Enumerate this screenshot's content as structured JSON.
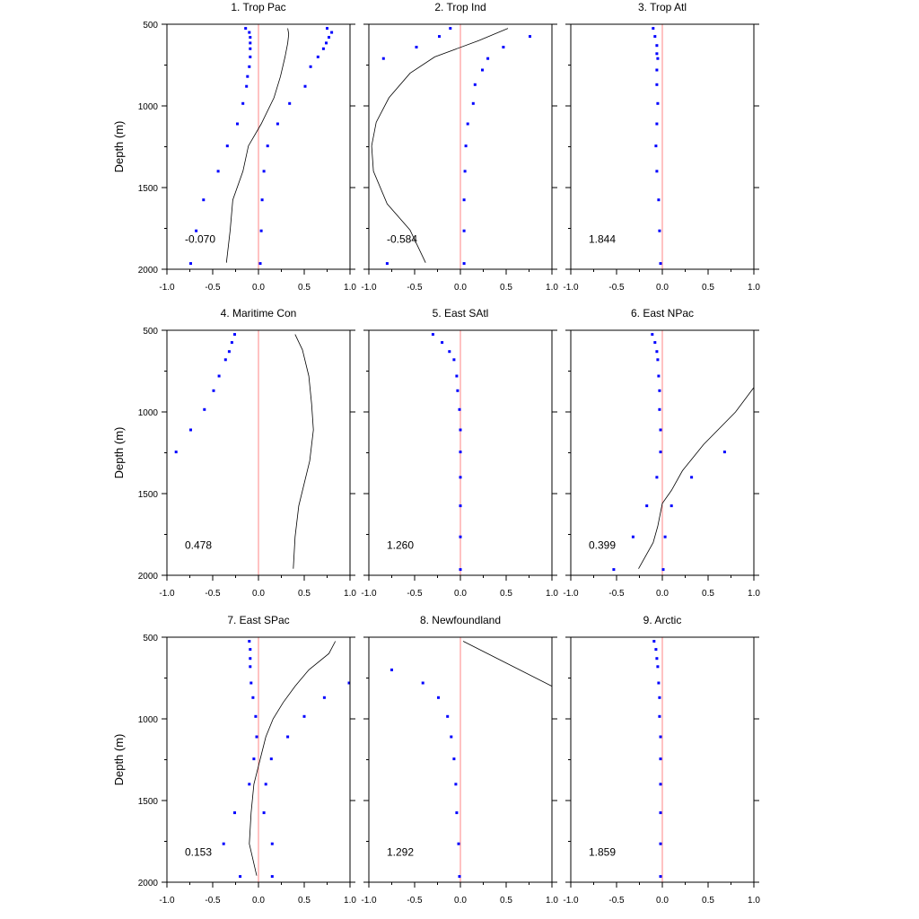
{
  "chart_data": {
    "type": "scatter",
    "ylabel": "Depth (m)",
    "xlim": [
      -1.0,
      1.0
    ],
    "ylim": [
      500,
      2000
    ],
    "y_reversed": true,
    "x_ticks": [
      "-1.0",
      "-0.5",
      "0.0",
      "0.5",
      "1.0"
    ],
    "y_ticks": [
      "500",
      "1000",
      "1500",
      "2000"
    ],
    "colors": {
      "points": "#0000ff",
      "zero_line": "#ff9999",
      "curve": "#000000"
    },
    "panels": [
      {
        "title": "1. Trop Pac",
        "value_label": "-0.070",
        "points": [
          [
            -0.14,
            525
          ],
          [
            -0.1,
            550
          ],
          [
            -0.09,
            580
          ],
          [
            -0.09,
            615
          ],
          [
            -0.09,
            650
          ],
          [
            -0.09,
            700
          ],
          [
            -0.1,
            760
          ],
          [
            -0.12,
            820
          ],
          [
            -0.13,
            880
          ],
          [
            -0.17,
            985
          ],
          [
            -0.23,
            1110
          ],
          [
            -0.34,
            1245
          ],
          [
            -0.44,
            1400
          ],
          [
            -0.6,
            1575
          ],
          [
            -0.68,
            1765
          ],
          [
            -0.74,
            1965
          ],
          [
            0.75,
            525
          ],
          [
            0.8,
            550
          ],
          [
            0.77,
            580
          ],
          [
            0.74,
            615
          ],
          [
            0.71,
            650
          ],
          [
            0.65,
            700
          ],
          [
            0.57,
            760
          ],
          [
            0.51,
            880
          ],
          [
            0.34,
            985
          ],
          [
            0.21,
            1110
          ],
          [
            0.1,
            1245
          ],
          [
            0.06,
            1400
          ],
          [
            0.04,
            1575
          ],
          [
            0.03,
            1765
          ],
          [
            0.02,
            1965
          ]
        ],
        "curve": [
          [
            0.32,
            525
          ],
          [
            0.33,
            560
          ],
          [
            0.32,
            615
          ],
          [
            0.29,
            700
          ],
          [
            0.24,
            820
          ],
          [
            0.17,
            950
          ],
          [
            0.03,
            1110
          ],
          [
            -0.11,
            1245
          ],
          [
            -0.17,
            1400
          ],
          [
            -0.28,
            1575
          ],
          [
            -0.31,
            1765
          ],
          [
            -0.35,
            1960
          ]
        ]
      },
      {
        "title": "2. Trop Ind",
        "value_label": "-0.584",
        "points": [
          [
            -0.11,
            525
          ],
          [
            -0.23,
            575
          ],
          [
            -0.48,
            640
          ],
          [
            -0.84,
            710
          ],
          [
            -0.8,
            1965
          ],
          [
            0.76,
            575
          ],
          [
            0.47,
            640
          ],
          [
            0.3,
            710
          ],
          [
            0.24,
            780
          ],
          [
            0.16,
            870
          ],
          [
            0.14,
            985
          ],
          [
            0.08,
            1110
          ],
          [
            0.06,
            1245
          ],
          [
            0.05,
            1400
          ],
          [
            0.04,
            1575
          ],
          [
            0.04,
            1765
          ],
          [
            0.04,
            1965
          ]
        ],
        "curve": [
          [
            0.52,
            525
          ],
          [
            0.2,
            600
          ],
          [
            -0.28,
            700
          ],
          [
            -0.55,
            800
          ],
          [
            -0.78,
            950
          ],
          [
            -0.92,
            1100
          ],
          [
            -0.97,
            1245
          ],
          [
            -0.95,
            1400
          ],
          [
            -0.8,
            1600
          ],
          [
            -0.55,
            1760
          ],
          [
            -0.38,
            1960
          ]
        ]
      },
      {
        "title": "3. Trop Atl",
        "value_label": "1.844",
        "points": [
          [
            -0.1,
            525
          ],
          [
            -0.08,
            575
          ],
          [
            -0.06,
            630
          ],
          [
            -0.06,
            680
          ],
          [
            -0.05,
            710
          ],
          [
            -0.06,
            780
          ],
          [
            -0.06,
            870
          ],
          [
            -0.05,
            985
          ],
          [
            -0.06,
            1110
          ],
          [
            -0.07,
            1245
          ],
          [
            -0.06,
            1400
          ],
          [
            -0.04,
            1575
          ],
          [
            -0.03,
            1765
          ],
          [
            -0.02,
            1965
          ]
        ],
        "curve": []
      },
      {
        "title": "4. Maritime Con",
        "value_label": "0.478",
        "points": [
          [
            -0.26,
            525
          ],
          [
            -0.29,
            575
          ],
          [
            -0.32,
            630
          ],
          [
            -0.36,
            680
          ],
          [
            -0.43,
            780
          ],
          [
            -0.49,
            870
          ],
          [
            -0.59,
            985
          ],
          [
            -0.74,
            1110
          ],
          [
            -0.9,
            1245
          ]
        ],
        "curve": [
          [
            0.4,
            525
          ],
          [
            0.48,
            620
          ],
          [
            0.55,
            780
          ],
          [
            0.58,
            950
          ],
          [
            0.6,
            1110
          ],
          [
            0.56,
            1300
          ],
          [
            0.44,
            1575
          ],
          [
            0.4,
            1765
          ],
          [
            0.38,
            1960
          ]
        ]
      },
      {
        "title": "5. East SAtl",
        "value_label": "1.260",
        "points": [
          [
            -0.3,
            525
          ],
          [
            -0.2,
            575
          ],
          [
            -0.12,
            630
          ],
          [
            -0.07,
            680
          ],
          [
            -0.04,
            780
          ],
          [
            -0.03,
            870
          ],
          [
            -0.01,
            985
          ],
          [
            0.0,
            1110
          ],
          [
            0.0,
            1245
          ],
          [
            0.0,
            1400
          ],
          [
            0.0,
            1575
          ],
          [
            0.0,
            1765
          ],
          [
            0.0,
            1965
          ]
        ],
        "curve": []
      },
      {
        "title": "6. East NPac",
        "value_label": "0.399",
        "points": [
          [
            -0.11,
            525
          ],
          [
            -0.08,
            575
          ],
          [
            -0.06,
            630
          ],
          [
            -0.05,
            680
          ],
          [
            -0.04,
            780
          ],
          [
            -0.03,
            870
          ],
          [
            -0.03,
            985
          ],
          [
            -0.02,
            1110
          ],
          [
            -0.02,
            1245
          ],
          [
            -0.06,
            1400
          ],
          [
            -0.17,
            1575
          ],
          [
            -0.32,
            1765
          ],
          [
            -0.53,
            1965
          ],
          [
            0.68,
            1245
          ],
          [
            0.32,
            1400
          ],
          [
            0.1,
            1575
          ],
          [
            0.03,
            1765
          ],
          [
            0.01,
            1965
          ]
        ],
        "curve": [
          [
            1.0,
            850
          ],
          [
            0.8,
            1000
          ],
          [
            0.45,
            1200
          ],
          [
            0.22,
            1360
          ],
          [
            0.1,
            1480
          ],
          [
            0.0,
            1560
          ],
          [
            -0.05,
            1700
          ],
          [
            -0.1,
            1800
          ],
          [
            -0.26,
            1960
          ]
        ]
      },
      {
        "title": "7. East SPac",
        "value_label": "0.153",
        "points": [
          [
            -0.1,
            525
          ],
          [
            -0.09,
            575
          ],
          [
            -0.09,
            630
          ],
          [
            -0.09,
            680
          ],
          [
            -0.08,
            780
          ],
          [
            -0.06,
            870
          ],
          [
            -0.03,
            985
          ],
          [
            -0.02,
            1110
          ],
          [
            -0.05,
            1245
          ],
          [
            -0.1,
            1400
          ],
          [
            -0.26,
            1575
          ],
          [
            -0.38,
            1765
          ],
          [
            -0.2,
            1965
          ],
          [
            0.99,
            780
          ],
          [
            0.72,
            870
          ],
          [
            0.5,
            985
          ],
          [
            0.32,
            1110
          ],
          [
            0.14,
            1245
          ],
          [
            0.08,
            1400
          ],
          [
            0.06,
            1575
          ],
          [
            0.15,
            1765
          ],
          [
            0.15,
            1965
          ]
        ],
        "curve": [
          [
            0.84,
            525
          ],
          [
            0.77,
            600
          ],
          [
            0.55,
            700
          ],
          [
            0.4,
            800
          ],
          [
            0.27,
            900
          ],
          [
            0.16,
            1000
          ],
          [
            0.08,
            1110
          ],
          [
            0.02,
            1245
          ],
          [
            -0.05,
            1400
          ],
          [
            -0.08,
            1575
          ],
          [
            -0.1,
            1765
          ],
          [
            -0.02,
            1960
          ]
        ]
      },
      {
        "title": "8. Newfoundland",
        "value_label": "1.292",
        "points": [
          [
            -0.75,
            700
          ],
          [
            -0.41,
            780
          ],
          [
            -0.24,
            870
          ],
          [
            -0.14,
            985
          ],
          [
            -0.1,
            1110
          ],
          [
            -0.07,
            1245
          ],
          [
            -0.05,
            1400
          ],
          [
            -0.04,
            1575
          ],
          [
            -0.02,
            1765
          ],
          [
            -0.01,
            1965
          ]
        ],
        "curve": [
          [
            0.03,
            525
          ],
          [
            1.0,
            800
          ]
        ]
      },
      {
        "title": "9. Arctic",
        "value_label": "1.859",
        "points": [
          [
            -0.09,
            525
          ],
          [
            -0.07,
            575
          ],
          [
            -0.06,
            630
          ],
          [
            -0.05,
            680
          ],
          [
            -0.04,
            780
          ],
          [
            -0.03,
            870
          ],
          [
            -0.03,
            985
          ],
          [
            -0.02,
            1110
          ],
          [
            -0.02,
            1245
          ],
          [
            -0.02,
            1400
          ],
          [
            -0.02,
            1575
          ],
          [
            -0.02,
            1765
          ],
          [
            -0.02,
            1965
          ]
        ],
        "curve": []
      }
    ]
  }
}
